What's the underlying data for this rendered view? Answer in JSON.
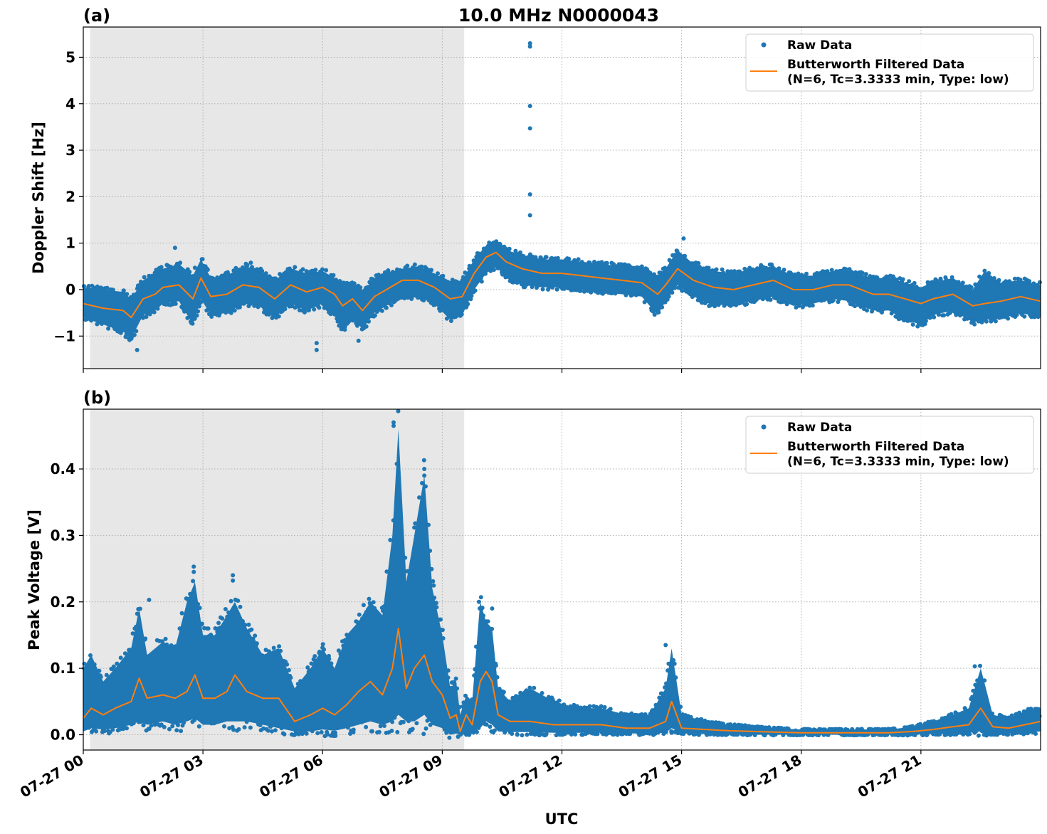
{
  "title": "10.0 MHz N0000043",
  "xlabel": "UTC",
  "colors": {
    "raw": "#1f77b4",
    "filtered": "#ff7f0e",
    "night": "#e7e7e7",
    "grid": "#b0b0b0"
  },
  "legend": {
    "raw": "Raw Data",
    "filtered_line1": "Butterworth Filtered Data",
    "filtered_line2": "(N=6, Tc=3.3333 min, Type: low)"
  },
  "chart_data": [
    {
      "type": "scatter",
      "panel": "(a)",
      "ylabel": "Doppler Shift [Hz]",
      "xlim": [
        0,
        24
      ],
      "ylim": [
        -1.7,
        5.65
      ],
      "yticks": [
        -1,
        0,
        1,
        2,
        3,
        4,
        5
      ],
      "ytick_labels": [
        "−1",
        "0",
        "1",
        "2",
        "3",
        "4",
        "5"
      ],
      "xticks": [
        0,
        3,
        6,
        9,
        12,
        15,
        18,
        21
      ],
      "xtick_labels": [
        "07-27 00",
        "07-27 03",
        "07-27 06",
        "07-27 09",
        "07-27 12",
        "07-27 15",
        "07-27 18",
        "07-27 21"
      ],
      "shaded_interval": [
        0.17,
        9.55
      ],
      "grid": true,
      "legend_position": "upper right",
      "series": [
        {
          "name": "Raw Data",
          "kind": "points",
          "x": [
            0.0,
            0.5,
            1.0,
            1.2,
            1.5,
            1.8,
            2.0,
            2.4,
            2.75,
            2.95,
            3.2,
            3.6,
            4.0,
            4.4,
            4.8,
            5.2,
            5.6,
            6.0,
            6.3,
            6.5,
            6.75,
            7.0,
            7.3,
            7.6,
            8.0,
            8.4,
            8.8,
            9.2,
            9.5,
            9.8,
            10.1,
            10.35,
            10.6,
            11.0,
            11.5,
            12.0,
            12.5,
            13.0,
            13.5,
            14.0,
            14.4,
            14.6,
            14.9,
            15.3,
            15.8,
            16.3,
            16.8,
            17.3,
            17.8,
            18.3,
            18.8,
            19.2,
            19.8,
            20.2,
            20.6,
            21.0,
            21.3,
            21.8,
            22.3,
            22.6,
            23.0,
            23.5,
            24.0
          ],
          "y": [
            -0.3,
            -0.4,
            -0.45,
            -0.6,
            -0.2,
            -0.1,
            0.05,
            0.1,
            -0.2,
            0.25,
            -0.15,
            -0.1,
            0.1,
            0.05,
            -0.2,
            0.1,
            -0.05,
            0.05,
            -0.1,
            -0.35,
            -0.2,
            -0.45,
            -0.15,
            0.0,
            0.2,
            0.2,
            0.05,
            -0.2,
            -0.15,
            0.35,
            0.7,
            0.8,
            0.6,
            0.45,
            0.35,
            0.35,
            0.3,
            0.25,
            0.2,
            0.15,
            -0.1,
            0.1,
            0.45,
            0.2,
            0.05,
            0.0,
            0.1,
            0.2,
            0.0,
            0.0,
            0.1,
            0.1,
            -0.1,
            -0.1,
            -0.2,
            -0.3,
            -0.2,
            -0.1,
            -0.35,
            -0.3,
            -0.25,
            -0.15,
            -0.25
          ],
          "y_low": [
            -0.6,
            -0.75,
            -0.9,
            -1.05,
            -0.55,
            -0.45,
            -0.3,
            -0.25,
            -0.75,
            -0.2,
            -0.55,
            -0.5,
            -0.3,
            -0.35,
            -0.6,
            -0.3,
            -0.45,
            -0.3,
            -0.55,
            -0.9,
            -0.6,
            -0.85,
            -0.5,
            -0.35,
            -0.15,
            -0.15,
            -0.3,
            -0.65,
            -0.55,
            0.0,
            0.35,
            0.5,
            0.25,
            0.1,
            0.05,
            0.05,
            0.0,
            -0.05,
            -0.1,
            -0.15,
            -0.55,
            -0.25,
            0.1,
            -0.15,
            -0.35,
            -0.3,
            -0.25,
            -0.15,
            -0.35,
            -0.3,
            -0.2,
            -0.25,
            -0.45,
            -0.45,
            -0.65,
            -0.75,
            -0.55,
            -0.45,
            -0.7,
            -0.65,
            -0.6,
            -0.5,
            -0.6
          ],
          "y_high": [
            0.05,
            0.0,
            -0.05,
            -0.2,
            0.2,
            0.35,
            0.45,
            0.55,
            0.3,
            0.65,
            0.25,
            0.3,
            0.5,
            0.45,
            0.2,
            0.45,
            0.35,
            0.4,
            0.25,
            0.1,
            0.2,
            -0.05,
            0.25,
            0.35,
            0.45,
            0.5,
            0.35,
            0.15,
            0.2,
            0.65,
            0.95,
            1.0,
            0.85,
            0.75,
            0.65,
            0.65,
            0.6,
            0.55,
            0.5,
            0.45,
            0.3,
            0.45,
            0.85,
            0.55,
            0.4,
            0.35,
            0.45,
            0.5,
            0.3,
            0.3,
            0.4,
            0.4,
            0.25,
            0.25,
            0.15,
            0.05,
            0.15,
            0.25,
            0.0,
            0.4,
            0.15,
            0.2,
            0.1
          ],
          "outliers": [
            [
              2.3,
              0.9
            ],
            [
              4.2,
              0.58
            ],
            [
              5.85,
              -1.3
            ],
            [
              5.85,
              -1.15
            ],
            [
              6.9,
              -1.1
            ],
            [
              11.2,
              5.3
            ],
            [
              11.2,
              5.23
            ],
            [
              11.2,
              3.95
            ],
            [
              11.2,
              3.47
            ],
            [
              11.2,
              2.05
            ],
            [
              11.2,
              1.6
            ],
            [
              15.05,
              1.1
            ],
            [
              1.35,
              -1.3
            ]
          ]
        },
        {
          "name": "(N=6, Tc=3.3333 min, Type: low)",
          "kind": "line",
          "x": [
            0.0,
            0.5,
            1.0,
            1.2,
            1.5,
            1.8,
            2.0,
            2.4,
            2.75,
            2.95,
            3.2,
            3.6,
            4.0,
            4.4,
            4.8,
            5.2,
            5.6,
            6.0,
            6.3,
            6.5,
            6.75,
            7.0,
            7.3,
            7.6,
            8.0,
            8.4,
            8.8,
            9.2,
            9.5,
            9.8,
            10.1,
            10.35,
            10.6,
            11.0,
            11.5,
            12.0,
            12.5,
            13.0,
            13.5,
            14.0,
            14.4,
            14.6,
            14.9,
            15.3,
            15.8,
            16.3,
            16.8,
            17.3,
            17.8,
            18.3,
            18.8,
            19.2,
            19.8,
            20.2,
            20.6,
            21.0,
            21.3,
            21.8,
            22.3,
            22.6,
            23.0,
            23.5,
            24.0
          ],
          "y": [
            -0.3,
            -0.4,
            -0.45,
            -0.6,
            -0.2,
            -0.1,
            0.05,
            0.1,
            -0.2,
            0.25,
            -0.15,
            -0.1,
            0.1,
            0.05,
            -0.2,
            0.1,
            -0.05,
            0.05,
            -0.1,
            -0.35,
            -0.2,
            -0.45,
            -0.15,
            0.0,
            0.2,
            0.2,
            0.05,
            -0.2,
            -0.15,
            0.35,
            0.7,
            0.8,
            0.6,
            0.45,
            0.35,
            0.35,
            0.3,
            0.25,
            0.2,
            0.15,
            -0.1,
            0.1,
            0.45,
            0.2,
            0.05,
            0.0,
            0.1,
            0.2,
            0.0,
            0.0,
            0.1,
            0.1,
            -0.1,
            -0.1,
            -0.2,
            -0.3,
            -0.2,
            -0.1,
            -0.35,
            -0.3,
            -0.25,
            -0.15,
            -0.25
          ]
        }
      ]
    },
    {
      "type": "scatter",
      "panel": "(b)",
      "ylabel": "Peak Voltage [V]",
      "xlim": [
        0,
        24
      ],
      "ylim": [
        -0.023,
        0.49
      ],
      "yticks": [
        0.0,
        0.1,
        0.2,
        0.3,
        0.4
      ],
      "ytick_labels": [
        "0.0",
        "0.1",
        "0.2",
        "0.3",
        "0.4"
      ],
      "xticks": [
        0,
        3,
        6,
        9,
        12,
        15,
        18,
        21
      ],
      "xtick_labels": [
        "07-27 00",
        "07-27 03",
        "07-27 06",
        "07-27 09",
        "07-27 12",
        "07-27 15",
        "07-27 18",
        "07-27 21"
      ],
      "shaded_interval": [
        0.17,
        9.55
      ],
      "grid": true,
      "legend_position": "upper right",
      "series": [
        {
          "name": "Raw Data",
          "kind": "points",
          "x": [
            0.0,
            0.2,
            0.5,
            0.8,
            1.2,
            1.4,
            1.6,
            2.0,
            2.3,
            2.6,
            2.8,
            3.0,
            3.3,
            3.6,
            3.8,
            4.1,
            4.5,
            4.9,
            5.3,
            5.7,
            6.0,
            6.3,
            6.6,
            6.9,
            7.2,
            7.5,
            7.75,
            7.9,
            8.1,
            8.3,
            8.55,
            8.75,
            9.0,
            9.2,
            9.35,
            9.45,
            9.6,
            9.75,
            9.95,
            10.1,
            10.25,
            10.4,
            10.7,
            11.2,
            11.8,
            12.4,
            13.0,
            13.6,
            14.2,
            14.6,
            14.75,
            15.0,
            15.6,
            16.2,
            16.8,
            17.3,
            18.0,
            18.8,
            19.5,
            20.2,
            20.8,
            21.3,
            21.8,
            22.2,
            22.5,
            22.8,
            23.2,
            23.6,
            24.0
          ],
          "y": [
            0.025,
            0.04,
            0.03,
            0.04,
            0.05,
            0.085,
            0.055,
            0.06,
            0.055,
            0.065,
            0.09,
            0.055,
            0.055,
            0.065,
            0.09,
            0.065,
            0.055,
            0.055,
            0.02,
            0.03,
            0.04,
            0.03,
            0.045,
            0.065,
            0.08,
            0.06,
            0.1,
            0.16,
            0.07,
            0.1,
            0.12,
            0.08,
            0.06,
            0.025,
            0.03,
            0.005,
            0.03,
            0.015,
            0.08,
            0.095,
            0.08,
            0.03,
            0.02,
            0.02,
            0.015,
            0.015,
            0.015,
            0.01,
            0.01,
            0.02,
            0.05,
            0.01,
            0.008,
            0.006,
            0.005,
            0.004,
            0.003,
            0.003,
            0.003,
            0.003,
            0.005,
            0.008,
            0.012,
            0.015,
            0.04,
            0.012,
            0.01,
            0.015,
            0.02
          ],
          "y_low": [
            0.005,
            0.01,
            0.008,
            0.01,
            0.015,
            0.02,
            0.015,
            0.02,
            0.015,
            0.02,
            0.025,
            0.015,
            0.015,
            0.02,
            0.02,
            0.02,
            0.015,
            0.01,
            0.005,
            0.005,
            0.008,
            0.006,
            0.01,
            0.015,
            0.02,
            0.015,
            0.02,
            0.03,
            0.02,
            0.02,
            0.03,
            0.015,
            0.01,
            0.0,
            0.002,
            0.0,
            0.003,
            0.003,
            0.01,
            0.02,
            0.015,
            0.005,
            0.004,
            0.004,
            0.003,
            0.003,
            0.003,
            0.002,
            0.002,
            0.003,
            0.01,
            0.002,
            0.001,
            0.001,
            0.0,
            0.0,
            0.0,
            0.0,
            0.0,
            0.0,
            0.0,
            0.001,
            0.002,
            0.003,
            0.005,
            0.002,
            0.002,
            0.003,
            0.005
          ],
          "y_high": [
            0.1,
            0.12,
            0.08,
            0.1,
            0.13,
            0.19,
            0.12,
            0.14,
            0.13,
            0.2,
            0.23,
            0.15,
            0.15,
            0.18,
            0.2,
            0.16,
            0.12,
            0.13,
            0.07,
            0.1,
            0.13,
            0.1,
            0.15,
            0.17,
            0.2,
            0.18,
            0.3,
            0.46,
            0.23,
            0.3,
            0.39,
            0.22,
            0.15,
            0.07,
            0.08,
            0.03,
            0.06,
            0.05,
            0.2,
            0.17,
            0.16,
            0.07,
            0.05,
            0.07,
            0.05,
            0.04,
            0.04,
            0.03,
            0.03,
            0.07,
            0.13,
            0.03,
            0.02,
            0.015,
            0.012,
            0.01,
            0.008,
            0.008,
            0.008,
            0.008,
            0.012,
            0.02,
            0.03,
            0.04,
            0.1,
            0.03,
            0.025,
            0.035,
            0.04
          ],
          "outliers": [
            [
              2.77,
              0.253
            ],
            [
              2.77,
              0.245
            ],
            [
              3.75,
              0.24
            ],
            [
              3.75,
              0.232
            ],
            [
              1.65,
              0.203
            ],
            [
              7.78,
              0.47
            ],
            [
              7.78,
              0.465
            ],
            [
              8.55,
              0.4
            ],
            [
              8.55,
              0.39
            ],
            [
              9.92,
              0.2
            ],
            [
              10.25,
              0.19
            ],
            [
              14.6,
              0.135
            ],
            [
              22.35,
              0.103
            ]
          ]
        },
        {
          "name": "(N=6, Tc=3.3333 min, Type: low)",
          "kind": "line",
          "x": [
            0.0,
            0.2,
            0.5,
            0.8,
            1.2,
            1.4,
            1.6,
            2.0,
            2.3,
            2.6,
            2.8,
            3.0,
            3.3,
            3.6,
            3.8,
            4.1,
            4.5,
            4.9,
            5.3,
            5.7,
            6.0,
            6.3,
            6.6,
            6.9,
            7.2,
            7.5,
            7.75,
            7.9,
            8.1,
            8.3,
            8.55,
            8.75,
            9.0,
            9.2,
            9.35,
            9.45,
            9.6,
            9.75,
            9.95,
            10.1,
            10.25,
            10.4,
            10.7,
            11.2,
            11.8,
            12.4,
            13.0,
            13.6,
            14.2,
            14.6,
            14.75,
            15.0,
            15.6,
            16.2,
            16.8,
            17.3,
            18.0,
            18.8,
            19.5,
            20.2,
            20.8,
            21.3,
            21.8,
            22.2,
            22.5,
            22.8,
            23.2,
            23.6,
            24.0
          ],
          "y": [
            0.025,
            0.04,
            0.03,
            0.04,
            0.05,
            0.085,
            0.055,
            0.06,
            0.055,
            0.065,
            0.09,
            0.055,
            0.055,
            0.065,
            0.09,
            0.065,
            0.055,
            0.055,
            0.02,
            0.03,
            0.04,
            0.03,
            0.045,
            0.065,
            0.08,
            0.06,
            0.1,
            0.16,
            0.07,
            0.1,
            0.12,
            0.08,
            0.06,
            0.025,
            0.03,
            0.005,
            0.03,
            0.015,
            0.08,
            0.095,
            0.08,
            0.03,
            0.02,
            0.02,
            0.015,
            0.015,
            0.015,
            0.01,
            0.01,
            0.02,
            0.05,
            0.01,
            0.008,
            0.006,
            0.005,
            0.004,
            0.003,
            0.003,
            0.003,
            0.003,
            0.005,
            0.008,
            0.012,
            0.015,
            0.04,
            0.012,
            0.01,
            0.015,
            0.02
          ]
        }
      ]
    }
  ]
}
